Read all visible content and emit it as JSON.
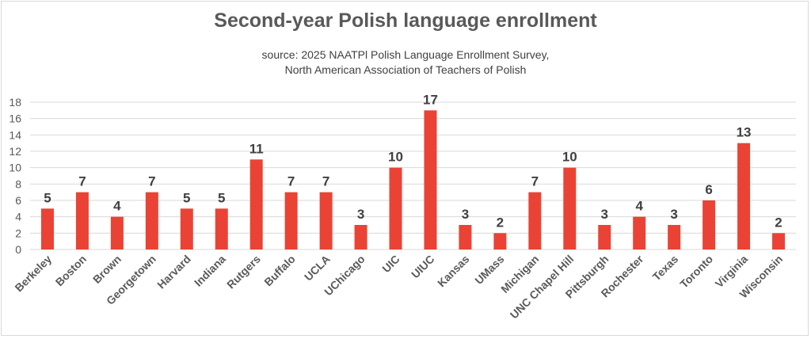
{
  "chart_data": {
    "type": "bar",
    "title": "Second-year Polish language enrollment",
    "subtitle": [
      "source: 2025 NAATPl Polish Language Enrollment Survey,",
      "North American Association of Teachers of Polish"
    ],
    "categories": [
      "Berkeley",
      "Boston",
      "Brown",
      "Georgetown",
      "Harvard",
      "Indiana",
      "Rutgers",
      "Buffalo",
      "UCLA",
      "UChicago",
      "UIC",
      "UIUC",
      "Kansas",
      "UMass",
      "Michigan",
      "UNC Chapel Hill",
      "Pittsburgh",
      "Rochester",
      "Texas",
      "Toronto",
      "Virginia",
      "Wisconsin"
    ],
    "values": [
      5,
      7,
      4,
      7,
      5,
      5,
      11,
      7,
      7,
      3,
      10,
      17,
      3,
      2,
      7,
      10,
      3,
      4,
      3,
      6,
      13,
      2
    ],
    "yticks": [
      0,
      2,
      4,
      6,
      8,
      10,
      12,
      14,
      16,
      18
    ],
    "ylim": [
      0,
      18
    ],
    "xlabel": "",
    "ylabel": "",
    "grid": true,
    "data_labels": true,
    "bar_color": "#ea4335",
    "legend": "none"
  }
}
